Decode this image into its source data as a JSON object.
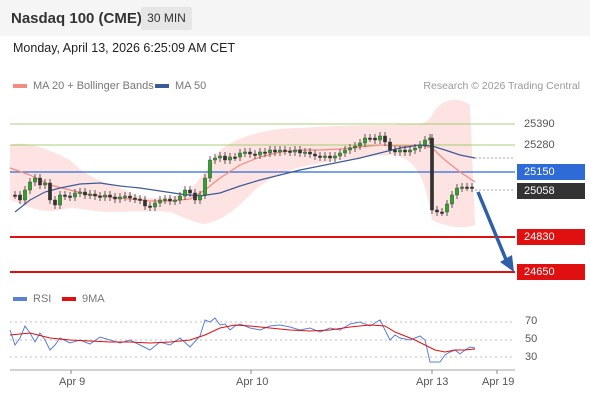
{
  "header": {
    "title": "Nasdaq 100 (CME)",
    "timeframe": "30 MIN"
  },
  "datetime": "Monday, April 13, 2026 6:25:09 AM CET",
  "legend": {
    "bollinger": {
      "label": "MA 20 + Bollinger Bands",
      "color": "#f28b82"
    },
    "ma50": {
      "label": "MA 50",
      "color": "#3d5a99"
    }
  },
  "research": "Research © 2026 Trading Central",
  "levels": [
    {
      "label": "25390",
      "kind": "resistance",
      "color": "#8bc34a"
    },
    {
      "label": "25280",
      "kind": "resistance",
      "color": "#8bc34a"
    },
    {
      "label": "25150",
      "kind": "pivot",
      "color": "#2e6bd6"
    },
    {
      "label": "25058",
      "kind": "last-price",
      "color": "#333333"
    },
    {
      "label": "24830",
      "kind": "target",
      "color": "#e01010"
    },
    {
      "label": "24650",
      "kind": "target",
      "color": "#e01010"
    }
  ],
  "rsi_legend": {
    "rsi": {
      "label": "RSI",
      "color": "#5b7fd6"
    },
    "ma9": {
      "label": "9MA",
      "color": "#e01010"
    }
  },
  "rsi_levels": [
    "70",
    "50",
    "30"
  ],
  "x_labels": [
    "Apr 9",
    "Apr 10",
    "Apr 13",
    "Apr 19"
  ]
}
